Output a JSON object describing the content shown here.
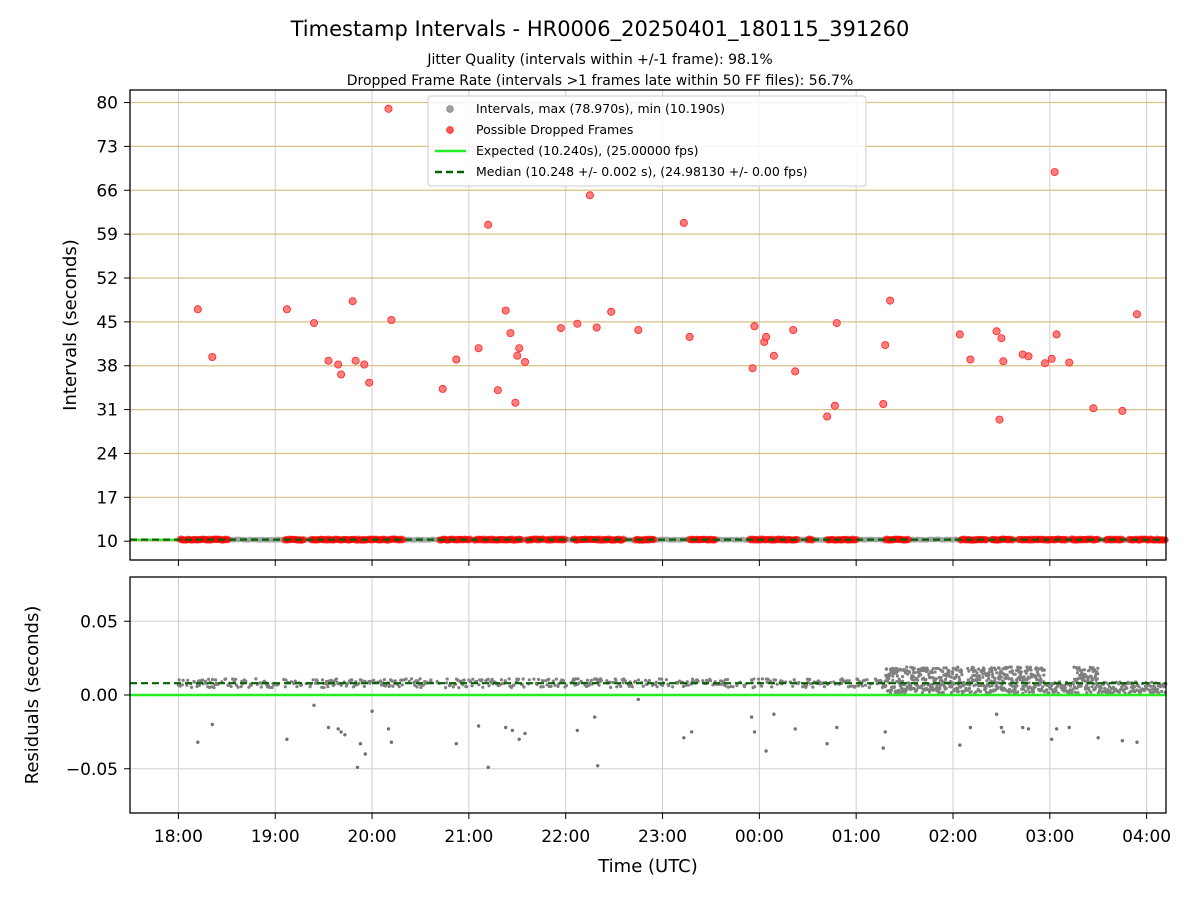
{
  "header": {
    "title": "Timestamp Intervals - HR0006_20250401_180115_391260",
    "subtitle1": "Jitter Quality (intervals within +/-1 frame): 98.1%",
    "subtitle2": "Dropped Frame Rate (intervals >1 frames late within 50 FF files): 56.7%"
  },
  "chart_data": [
    {
      "type": "scatter",
      "panel": "intervals",
      "ylabel": "Intervals (seconds)",
      "xlabel": "",
      "x_unit": "hours since 18:00 UTC",
      "xlim": [
        -0.5,
        10.2
      ],
      "ylim": [
        7,
        82
      ],
      "yticks": [
        10,
        17,
        24,
        31,
        38,
        45,
        52,
        59,
        66,
        73,
        80
      ],
      "xticks": [
        0,
        1,
        2,
        3,
        4,
        5,
        6,
        7,
        8,
        9,
        10
      ],
      "xtick_labels": [
        "18:00",
        "19:00",
        "20:00",
        "21:00",
        "22:00",
        "23:00",
        "00:00",
        "01:00",
        "02:00",
        "03:00",
        "04:00"
      ],
      "grid": true,
      "legend_position": "top-center",
      "legend": [
        "Intervals, max (78.970s), min (10.190s)",
        "Possible Dropped Frames",
        "Expected (10.240s), (25.00000 fps)",
        "Median (10.248 +/- 0.002 s), (24.98130 +/- 0.00 fps)"
      ],
      "colors": {
        "intervals": "#a0a0a0",
        "dropped": "#ff0000",
        "expected": "#22ee22",
        "median": "#006400",
        "hgrid": "#d9c184"
      },
      "expected": 10.24,
      "median": 10.248,
      "baseline_dropped_segments": [
        [
          0.02,
          0.52
        ],
        [
          1.1,
          1.3
        ],
        [
          1.37,
          2.33
        ],
        [
          2.7,
          3.02
        ],
        [
          3.06,
          3.55
        ],
        [
          3.6,
          3.78
        ],
        [
          3.8,
          4.0
        ],
        [
          4.08,
          4.6
        ],
        [
          4.72,
          4.92
        ],
        [
          5.28,
          5.55
        ],
        [
          5.9,
          6.4
        ],
        [
          6.5,
          6.55
        ],
        [
          6.7,
          7.0
        ],
        [
          7.3,
          7.55
        ],
        [
          8.08,
          8.35
        ],
        [
          8.4,
          8.62
        ],
        [
          8.68,
          9.18
        ],
        [
          9.22,
          9.5
        ],
        [
          9.58,
          9.75
        ],
        [
          9.82,
          10.2
        ]
      ],
      "series": [
        {
          "name": "Possible Dropped Frames",
          "x": [
            0.2,
            0.35,
            1.12,
            1.4,
            1.55,
            1.65,
            1.68,
            1.8,
            1.83,
            1.92,
            1.97,
            2.17,
            2.2,
            2.73,
            2.87,
            3.1,
            3.2,
            3.3,
            3.38,
            3.43,
            3.48,
            3.5,
            3.52,
            3.58,
            3.95,
            4.12,
            4.25,
            4.32,
            4.47,
            4.75,
            5.22,
            5.28,
            5.93,
            5.95,
            6.05,
            6.07,
            6.15,
            6.35,
            6.37,
            6.7,
            6.78,
            6.8,
            7.28,
            7.3,
            7.35,
            8.07,
            8.18,
            8.45,
            8.48,
            8.5,
            8.52,
            8.72,
            8.78,
            8.95,
            9.02,
            9.05,
            9.07,
            9.2,
            9.45,
            9.75,
            9.9
          ],
          "y": [
            47,
            39.4,
            47,
            44.8,
            38.8,
            38.2,
            36.6,
            48.3,
            38.8,
            38.2,
            35.3,
            79,
            45.3,
            34.3,
            39,
            40.8,
            60.5,
            34.1,
            46.8,
            43.2,
            32.1,
            39.6,
            40.8,
            38.6,
            44,
            44.7,
            65.2,
            44.1,
            46.6,
            43.7,
            60.8,
            42.6,
            37.6,
            44.3,
            41.8,
            42.6,
            39.6,
            43.7,
            37.1,
            29.9,
            31.6,
            44.8,
            31.9,
            41.3,
            48.4,
            43,
            39,
            43.5,
            29.4,
            42.4,
            38.7,
            39.8,
            39.5,
            38.4,
            39.1,
            68.9,
            43,
            38.5,
            31.2,
            30.8,
            46.2
          ]
        }
      ]
    },
    {
      "type": "scatter",
      "panel": "residuals",
      "ylabel": "Residuals (seconds)",
      "xlabel": "Time (UTC)",
      "x_unit": "hours since 18:00 UTC",
      "xlim": [
        -0.5,
        10.2
      ],
      "ylim": [
        -0.08,
        0.08
      ],
      "yticks": [
        -0.05,
        0.0,
        0.05
      ],
      "ytick_labels": [
        "−0.05",
        "0.00",
        "0.05"
      ],
      "grid": true,
      "expected": 0.0,
      "median": 0.008,
      "main_band": [
        [
          0.0,
          10.2,
          0.008
        ]
      ],
      "noisy_region": [
        7.3,
        10.2
      ],
      "series": [
        {
          "name": "Intervals",
          "x": [
            0.2,
            0.35,
            1.12,
            1.4,
            1.55,
            1.65,
            1.68,
            1.72,
            1.85,
            1.88,
            1.93,
            2.0,
            2.17,
            2.2,
            2.87,
            3.1,
            3.2,
            3.38,
            3.45,
            3.52,
            3.58,
            4.12,
            4.3,
            4.33,
            4.75,
            5.22,
            5.3,
            5.92,
            5.95,
            6.07,
            6.15,
            6.37,
            6.7,
            6.8,
            7.28,
            7.3,
            8.07,
            8.18,
            8.45,
            8.5,
            8.52,
            8.72,
            8.78,
            9.02,
            9.07,
            9.2,
            9.5,
            9.75,
            9.9
          ],
          "y": [
            -0.032,
            -0.02,
            -0.03,
            -0.007,
            -0.022,
            -0.023,
            -0.025,
            -0.027,
            -0.049,
            -0.033,
            -0.04,
            -0.011,
            -0.023,
            -0.032,
            -0.033,
            -0.021,
            -0.049,
            -0.022,
            -0.024,
            -0.03,
            -0.026,
            -0.024,
            -0.015,
            -0.048,
            -0.003,
            -0.029,
            -0.025,
            -0.015,
            -0.025,
            -0.038,
            -0.013,
            -0.023,
            -0.033,
            -0.022,
            -0.036,
            -0.025,
            -0.034,
            -0.022,
            -0.013,
            -0.022,
            -0.025,
            -0.022,
            -0.023,
            -0.03,
            -0.023,
            -0.022,
            -0.029,
            -0.031,
            -0.032
          ]
        }
      ]
    }
  ]
}
